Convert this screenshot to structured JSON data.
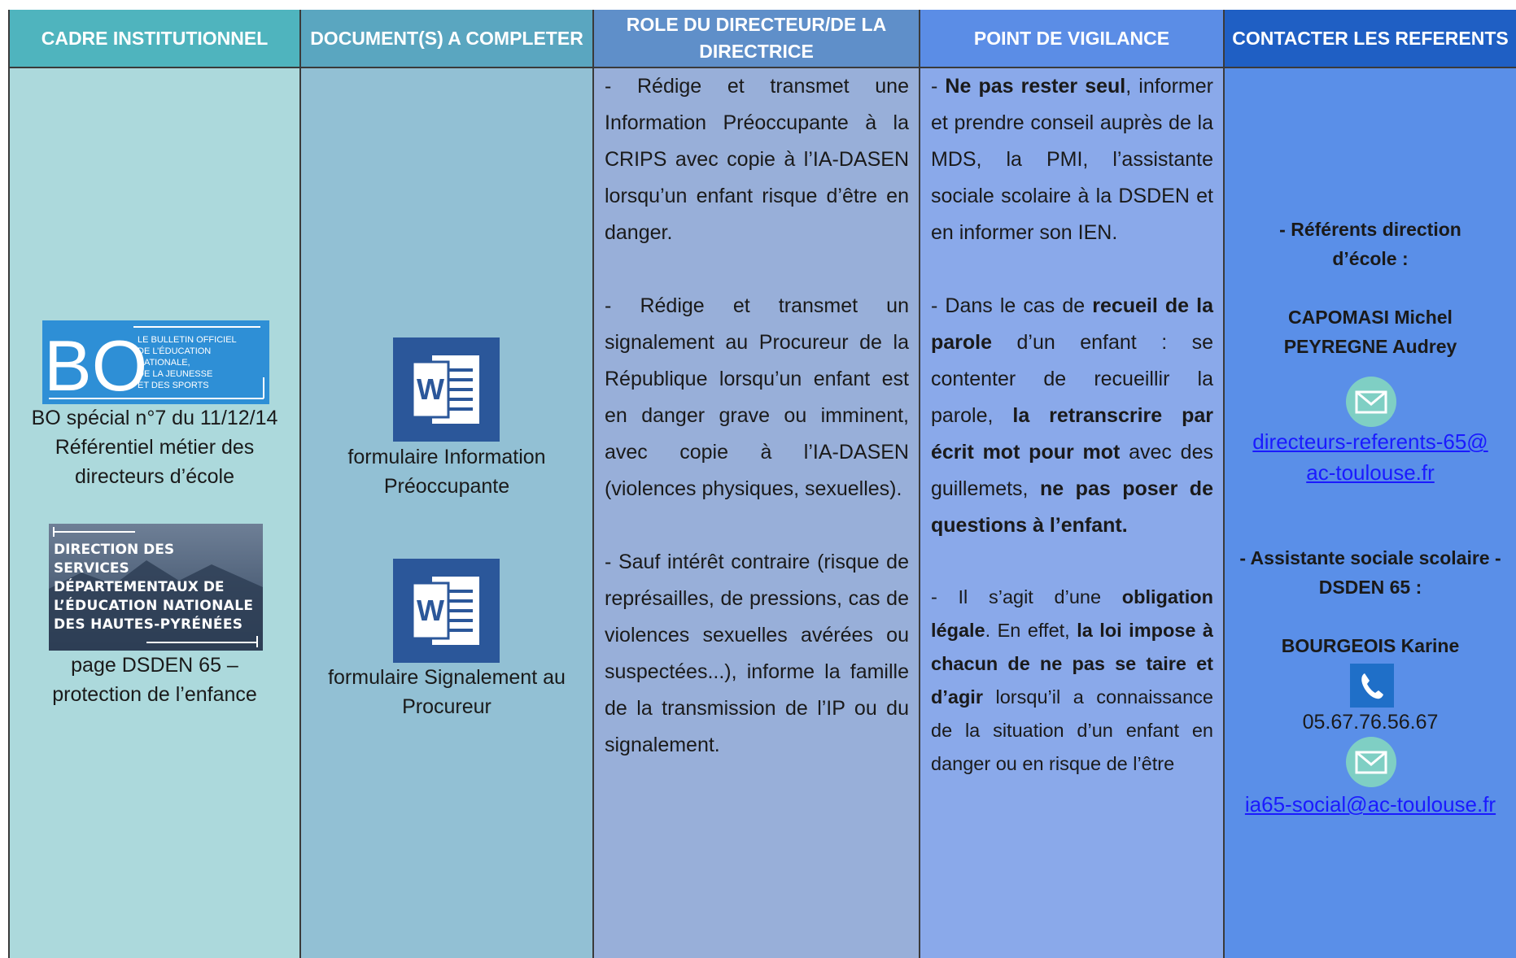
{
  "table": {
    "headers": [
      "CADRE INSTITUTIONNEL",
      "DOCUMENT(S) A COMPLETER",
      "ROLE DU DIRECTEUR/DE LA DIRECTRICE",
      "POINT DE VIGILANCE",
      "CONTACTER LES REFERENTS"
    ],
    "cadre": {
      "bo_logo": {
        "mark": "BO",
        "caption": [
          "LE BULLETIN OFFICIEL",
          "DE L’ÉDUCATION",
          "NATIONALE,",
          "DE LA JEUNESSE",
          "ET DES SPORTS"
        ]
      },
      "bo_caption": "BO spécial n°7 du 11/12/14 Référentiel métier des directeurs d’école",
      "dsden_logo": [
        "DIRECTION DES",
        "SERVICES",
        "DÉPARTEMENTAUX DE",
        "L’ÉDUCATION NATIONALE",
        "DES HAUTES-PYRÉNÉES"
      ],
      "dsden_caption": "page DSDEN 65 – protection de l’enfance"
    },
    "documents": [
      {
        "icon": "W",
        "label": "formulaire Information Préoccupante"
      },
      {
        "icon": "W",
        "label": "formulaire Signalement au Procureur"
      }
    ],
    "role": [
      "- Rédige et transmet une Information Préoccupante à la CRIPS avec copie à l’IA-DASEN lorsqu’un enfant risque d’être en danger.",
      "- Rédige et transmet un signalement au Procureur de la République lorsqu’un enfant est en danger grave ou imminent, avec copie à l’IA-DASEN (violences physiques, sexuelles).",
      "- Sauf intérêt contraire (risque de représailles, de pressions, cas de violences sexuelles avérées ou suspectées...), informe la famille de la transmission de l’IP ou du signalement."
    ],
    "vigilance": [
      [
        {
          "text": "- "
        },
        {
          "text": "Ne pas rester seul",
          "bold": true
        },
        {
          "text": ", informer et prendre conseil auprès de la MDS, la PMI, l’assistante sociale scolaire à la DSDEN et en informer son IEN."
        }
      ],
      [
        {
          "text": "- Dans le cas de "
        },
        {
          "text": "recueil de la parole",
          "bold": true
        },
        {
          "text": " d’un enfant : se contenter de recueillir la parole, "
        },
        {
          "text": "la retranscrire par écrit mot pour mot",
          "bold": true
        },
        {
          "text": " avec des guillemets, "
        },
        {
          "text": "ne pas poser de questions à l’enfant.",
          "bold": true
        }
      ],
      [
        {
          "text": "- Il s’agit d’une "
        },
        {
          "text": "obligation légale",
          "bold": true
        },
        {
          "text": ". En effet, "
        },
        {
          "text": "la loi impose à chacun de ne pas se taire et d’agir",
          "bold": true
        },
        {
          "text": " lorsqu’il a connaissance de la situation d’un enfant en danger ou en risque de l’être"
        }
      ]
    ],
    "contacts": {
      "referents": {
        "heading": "- Référents direction d’école :",
        "names": [
          "CAPOMASI Michel",
          "PEYREGNE Audrey"
        ],
        "email": "directeurs-referents-65@ac-toulouse.fr"
      },
      "assistante": {
        "heading": "- Assistante sociale scolaire -DSDEN 65 :",
        "name": "BOURGEOIS Karine",
        "phone": "05.67.76.56.67",
        "email": "ia65-social@ac-toulouse.fr"
      }
    }
  }
}
